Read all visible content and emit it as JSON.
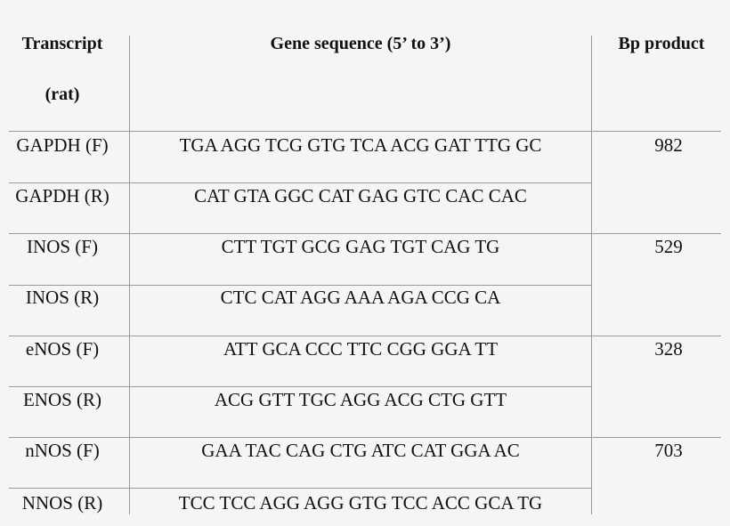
{
  "headers": {
    "transcript": "Transcript",
    "transcript_sub": "(rat)",
    "sequence": "Gene sequence (5’ to 3’)",
    "product": "Bp product"
  },
  "rows": [
    {
      "transcript": "GAPDH (F)",
      "sequence": "TGA AGG TCG GTG TCA ACG GAT TTG GC",
      "product": "982"
    },
    {
      "transcript": "GAPDH (R)",
      "sequence": "CAT GTA GGC CAT GAG GTC CAC CAC",
      "product": ""
    },
    {
      "transcript": "INOS (F)",
      "sequence": "CTT TGT GCG GAG TGT CAG TG",
      "product": "529"
    },
    {
      "transcript": "INOS (R)",
      "sequence": "CTC CAT AGG AAA AGA CCG CA",
      "product": ""
    },
    {
      "transcript": "eNOS (F)",
      "sequence": "ATT GCA CCC TTC CGG GGA TT",
      "product": "328"
    },
    {
      "transcript": "ENOS (R)",
      "sequence": "ACG GTT TGC AGG ACG CTG GTT",
      "product": ""
    },
    {
      "transcript": "nNOS (F)",
      "sequence": "GAA TAC CAG CTG ATC CAT GGA AC",
      "product": "703"
    },
    {
      "transcript": "NNOS (R)",
      "sequence": "TCC TCC AGG AGG GTG TCC ACC GCA TG",
      "product": ""
    }
  ]
}
